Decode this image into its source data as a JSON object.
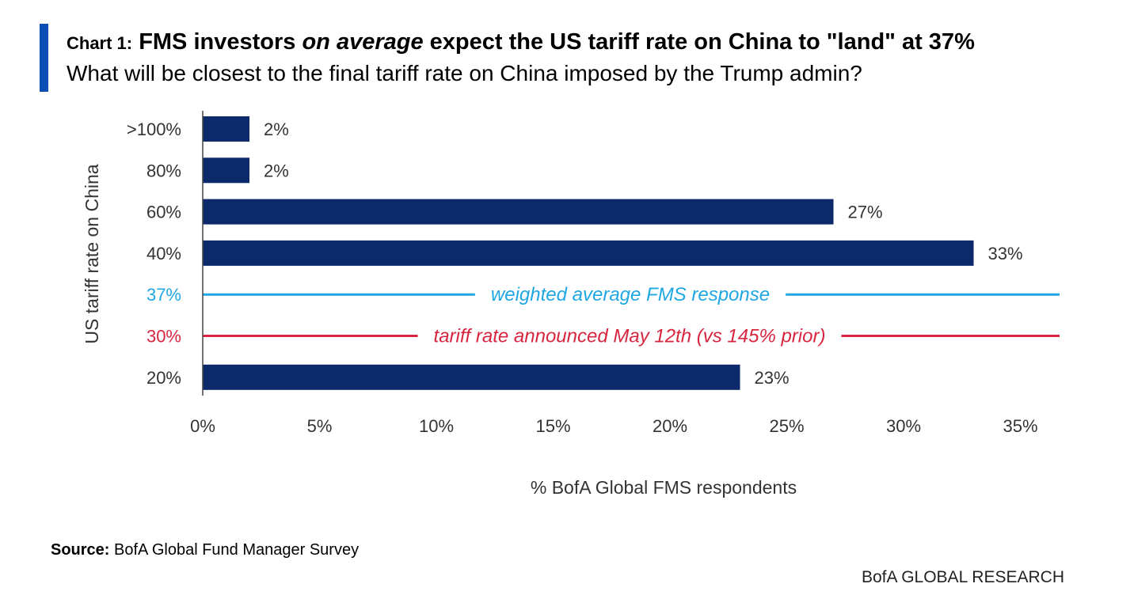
{
  "header": {
    "title_prefix": "Chart 1:",
    "title_part1": "FMS investors ",
    "title_emph": "on average",
    "title_part2": " expect the US tariff rate on China to \"land\" at 37%",
    "subtitle": "What will be closest to the final tariff rate on China imposed by the Trump admin?"
  },
  "chart_data": {
    "type": "bar",
    "orientation": "horizontal",
    "ylabel": "US tariff rate on China",
    "xlabel": "% BofA Global FMS respondents",
    "xlim": [
      0,
      37
    ],
    "xticks": [
      {
        "value": 0,
        "label": "0%"
      },
      {
        "value": 5,
        "label": "5%"
      },
      {
        "value": 10,
        "label": "10%"
      },
      {
        "value": 15,
        "label": "15%"
      },
      {
        "value": 20,
        "label": "20%"
      },
      {
        "value": 25,
        "label": "25%"
      },
      {
        "value": 30,
        "label": "30%"
      },
      {
        "value": 35,
        "label": "35%"
      }
    ],
    "rows": [
      {
        "category": ">100%",
        "kind": "bar",
        "value": 2,
        "label": "2%"
      },
      {
        "category": "80%",
        "kind": "bar",
        "value": 2,
        "label": "2%"
      },
      {
        "category": "60%",
        "kind": "bar",
        "value": 27,
        "label": "27%"
      },
      {
        "category": "40%",
        "kind": "bar",
        "value": 33,
        "label": "33%"
      },
      {
        "category": "37%",
        "kind": "line",
        "label": "weighted average FMS response",
        "color": "#1ea7e2"
      },
      {
        "category": "30%",
        "kind": "line",
        "label": "tariff rate announced May 12th (vs 145% prior)",
        "color": "#d8253f"
      },
      {
        "category": "20%",
        "kind": "bar",
        "value": 23,
        "label": "23%"
      }
    ],
    "bar_color": "#0c2a6b",
    "grid": false
  },
  "footer": {
    "source_label": "Source:",
    "source_text": " BofA Global Fund Manager Survey",
    "brand": "BofA GLOBAL RESEARCH"
  }
}
